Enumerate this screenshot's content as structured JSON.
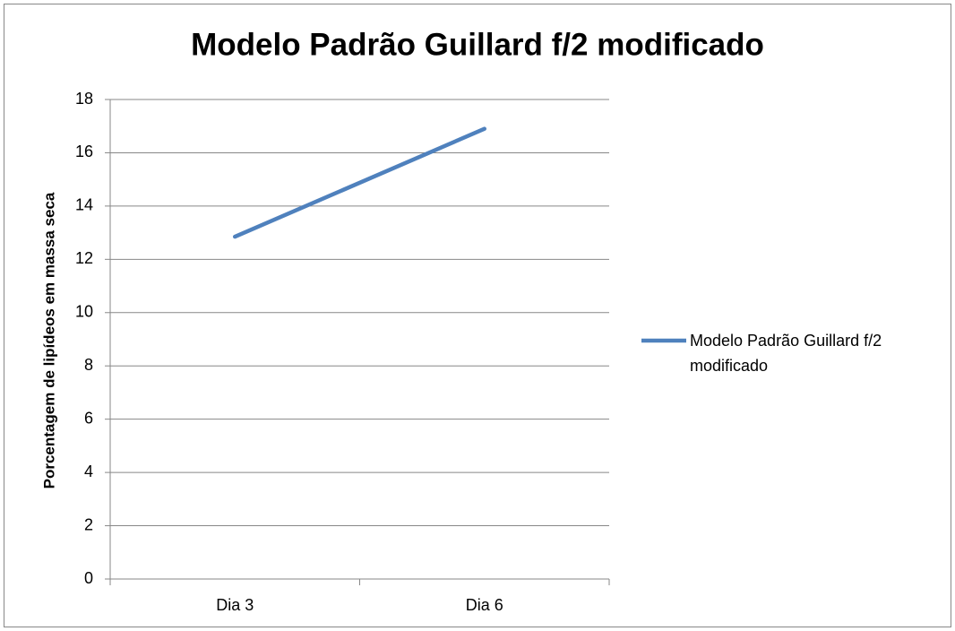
{
  "chart_data": {
    "type": "line",
    "title": "Modelo Padrão Guillard f/2 modificado",
    "y_label": "Porcentagem de lipídeos em massa seca",
    "categories": [
      "Dia 3",
      "Dia 6"
    ],
    "series": [
      {
        "name": "Modelo Padrão Guillard f/2 modificado",
        "color": "#4f81bd",
        "values": [
          12.85,
          16.9
        ]
      }
    ],
    "ylim": [
      0,
      18
    ],
    "yticks": [
      0,
      2,
      4,
      6,
      8,
      10,
      12,
      14,
      16,
      18
    ],
    "grid": true,
    "legend": "right"
  }
}
